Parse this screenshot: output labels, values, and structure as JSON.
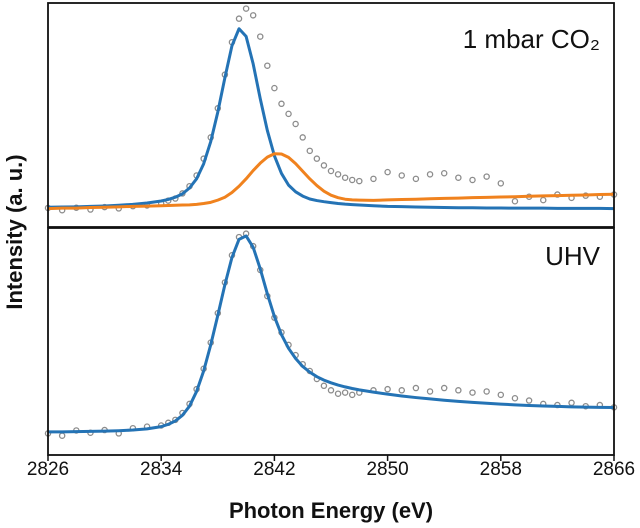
{
  "chart_data": [
    {
      "type": "line",
      "label": "1 mbar CO₂",
      "ylabel": "Intensity (a. u.)",
      "xlim": [
        2826,
        2866
      ],
      "ylim": [
        0,
        100
      ],
      "x": [
        2826,
        2827,
        2828,
        2829,
        2830,
        2831,
        2832,
        2833,
        2834,
        2834.5,
        2835,
        2835.5,
        2836,
        2836.5,
        2837,
        2837.5,
        2838,
        2838.5,
        2839,
        2839.5,
        2840,
        2840.5,
        2841,
        2841.5,
        2842,
        2842.5,
        2843,
        2843.5,
        2844,
        2844.5,
        2845,
        2845.5,
        2846,
        2846.5,
        2847,
        2847.5,
        2848,
        2849,
        2850,
        2851,
        2852,
        2853,
        2854,
        2855,
        2856,
        2857,
        2858,
        2859,
        2860,
        2861,
        2862,
        2863,
        2864,
        2865,
        2866
      ],
      "series": [
        {
          "color": "#8c8c8c",
          "marker": true,
          "values": [
            8.5,
            7.5,
            8.6,
            7.8,
            8.9,
            8.3,
            9.3,
            9.6,
            10.5,
            11.8,
            12.7,
            15.0,
            18.2,
            23.0,
            30.5,
            40.0,
            53.0,
            68.0,
            82.5,
            93.0,
            97.5,
            94.5,
            85.0,
            72.0,
            62.0,
            55.0,
            50.5,
            46.0,
            40.0,
            34.0,
            30.5,
            27.5,
            25.0,
            23.5,
            22.0,
            21.0,
            20.5,
            21.5,
            24.5,
            23.0,
            21.5,
            23.5,
            24.0,
            22.0,
            21.0,
            22.5,
            19.5,
            11.5,
            13.5,
            12.0,
            14.5,
            13.0,
            14.0,
            13.5,
            14.5
          ]
        },
        {
          "color": "#2473b5",
          "marker": false,
          "values": [
            8.8,
            8.9,
            9.0,
            9.2,
            9.4,
            9.7,
            10.1,
            10.7,
            11.6,
            12.3,
            13.3,
            14.8,
            17.4,
            21.5,
            28.2,
            38.1,
            51.3,
            66.6,
            80.9,
            88.5,
            85.1,
            72.8,
            57.3,
            43.1,
            31.8,
            23.9,
            18.7,
            15.7,
            13.8,
            12.5,
            11.8,
            11.3,
            10.9,
            10.5,
            10.2,
            10.0,
            9.8,
            9.5,
            9.2,
            9.1,
            8.9,
            8.8,
            8.7,
            8.6,
            8.6,
            8.5,
            8.5,
            8.4,
            8.4,
            8.4,
            8.3,
            8.3,
            8.3,
            8.3,
            8.2
          ]
        },
        {
          "color": "#f0821e",
          "marker": false,
          "values": [
            8.2,
            8.4,
            8.4,
            8.7,
            8.8,
            9.0,
            9.2,
            9.3,
            9.5,
            9.6,
            9.7,
            9.8,
            9.9,
            10.1,
            10.5,
            11.0,
            12.0,
            13.3,
            15.4,
            18.2,
            21.5,
            25.2,
            28.5,
            31.2,
            32.7,
            32.6,
            31.1,
            28.3,
            24.9,
            21.5,
            18.5,
            16.0,
            14.2,
            13.1,
            12.4,
            12.1,
            12.0,
            11.9,
            12.1,
            12.3,
            12.4,
            12.6,
            12.8,
            12.9,
            13.1,
            13.2,
            13.4,
            13.5,
            13.7,
            13.9,
            14.0,
            14.2,
            14.3,
            14.5,
            14.6
          ]
        }
      ]
    },
    {
      "type": "line",
      "label": "UHV",
      "xlabel": "Photon Energy (eV)",
      "xlim": [
        2826,
        2866
      ],
      "ylim": [
        0,
        100
      ],
      "xticks": [
        2826,
        2834,
        2842,
        2850,
        2858,
        2866
      ],
      "x": [
        2826,
        2827,
        2828,
        2829,
        2830,
        2831,
        2832,
        2833,
        2834,
        2834.5,
        2835,
        2835.5,
        2836,
        2836.5,
        2837,
        2837.5,
        2838,
        2838.5,
        2839,
        2839.5,
        2840,
        2840.5,
        2841,
        2841.5,
        2842,
        2842.5,
        2843,
        2843.5,
        2844,
        2844.5,
        2845,
        2845.5,
        2846,
        2846.5,
        2847,
        2847.5,
        2848,
        2849,
        2850,
        2851,
        2852,
        2853,
        2854,
        2855,
        2856,
        2857,
        2858,
        2859,
        2860,
        2861,
        2862,
        2863,
        2864,
        2865,
        2866
      ],
      "series": [
        {
          "color": "#8c8c8c",
          "marker": true,
          "values": [
            9.5,
            8.5,
            10.8,
            9.8,
            11.0,
            9.5,
            11.8,
            12.5,
            13.0,
            14.2,
            15.5,
            18.5,
            22.5,
            29.0,
            38.0,
            49.5,
            62.5,
            76.0,
            88.0,
            96.0,
            97.5,
            92.0,
            81.5,
            70.0,
            60.5,
            54.0,
            48.5,
            44.0,
            40.0,
            37.0,
            33.5,
            30.5,
            28.5,
            27.0,
            27.5,
            26.5,
            27.5,
            28.5,
            29.0,
            28.5,
            29.5,
            28.0,
            29.5,
            28.5,
            27.5,
            28.0,
            26.5,
            25.0,
            24.0,
            22.5,
            22.0,
            23.0,
            21.5,
            22.0,
            21.0
          ]
        },
        {
          "color": "#2473b5",
          "marker": false,
          "values": [
            10.2,
            10.2,
            10.3,
            10.4,
            10.5,
            10.7,
            11.0,
            11.5,
            12.5,
            13.5,
            15.0,
            17.5,
            21.5,
            28.0,
            37.0,
            48.5,
            61.5,
            75.0,
            87.0,
            95.0,
            96.5,
            91.5,
            82.0,
            71.0,
            61.0,
            53.0,
            47.0,
            42.5,
            39.0,
            36.5,
            34.5,
            33.0,
            31.8,
            30.8,
            30.0,
            29.3,
            28.7,
            27.7,
            26.8,
            26.0,
            25.3,
            24.7,
            24.1,
            23.6,
            23.2,
            22.8,
            22.4,
            22.1,
            21.8,
            21.6,
            21.4,
            21.2,
            21.1,
            21.0,
            20.9
          ]
        }
      ]
    }
  ]
}
